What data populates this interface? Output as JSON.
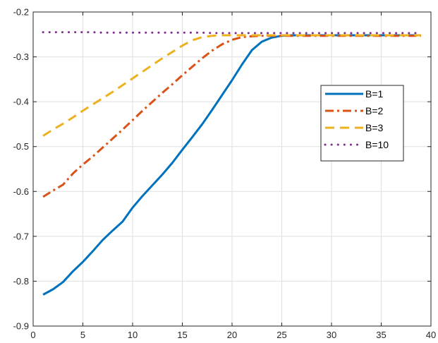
{
  "chart_data": {
    "type": "line",
    "title": "",
    "xlabel": "",
    "ylabel": "",
    "xlim": [
      0,
      40
    ],
    "ylim": [
      -0.9,
      -0.2
    ],
    "xticks": [
      0,
      5,
      10,
      15,
      20,
      25,
      30,
      35,
      40
    ],
    "yticks": [
      -0.9,
      -0.8,
      -0.7,
      -0.6,
      -0.5,
      -0.4,
      -0.3,
      -0.2
    ],
    "xtick_labels": [
      "0",
      "5",
      "10",
      "15",
      "20",
      "25",
      "30",
      "35",
      "40"
    ],
    "ytick_labels": [
      "-0.9",
      "-0.8",
      "-0.7",
      "-0.6",
      "-0.5",
      "-0.4",
      "-0.3",
      "-0.2"
    ],
    "grid": true,
    "legend_position": "right",
    "x": [
      1,
      2,
      3,
      4,
      5,
      6,
      7,
      8,
      9,
      10,
      11,
      12,
      13,
      14,
      15,
      16,
      17,
      18,
      19,
      20,
      21,
      22,
      23,
      24,
      25,
      26,
      27,
      28,
      29,
      30,
      31,
      32,
      33,
      34,
      35,
      36,
      37,
      38,
      39
    ],
    "series": [
      {
        "name": "B=1",
        "color": "#0072BD",
        "style": "solid",
        "values": [
          -0.83,
          -0.818,
          -0.802,
          -0.778,
          -0.757,
          -0.733,
          -0.708,
          -0.687,
          -0.667,
          -0.636,
          -0.61,
          -0.586,
          -0.562,
          -0.536,
          -0.507,
          -0.479,
          -0.45,
          -0.418,
          -0.385,
          -0.352,
          -0.317,
          -0.285,
          -0.266,
          -0.257,
          -0.253,
          -0.252,
          -0.252,
          -0.252,
          -0.252,
          -0.252,
          -0.252,
          -0.252,
          -0.252,
          -0.252,
          -0.252,
          -0.252,
          -0.252,
          -0.252,
          -0.252
        ]
      },
      {
        "name": "B=2",
        "color": "#D95319",
        "style": "dashdot",
        "values": [
          -0.612,
          -0.598,
          -0.585,
          -0.56,
          -0.54,
          -0.522,
          -0.502,
          -0.482,
          -0.462,
          -0.441,
          -0.42,
          -0.4,
          -0.38,
          -0.361,
          -0.341,
          -0.322,
          -0.303,
          -0.286,
          -0.272,
          -0.262,
          -0.256,
          -0.254,
          -0.253,
          -0.253,
          -0.253,
          -0.253,
          -0.253,
          -0.253,
          -0.253,
          -0.253,
          -0.253,
          -0.253,
          -0.253,
          -0.253,
          -0.253,
          -0.253,
          -0.253,
          -0.253,
          -0.253
        ]
      },
      {
        "name": "B=3",
        "color": "#EDB120",
        "style": "dashed",
        "values": [
          -0.476,
          -0.462,
          -0.449,
          -0.435,
          -0.42,
          -0.406,
          -0.392,
          -0.378,
          -0.363,
          -0.348,
          -0.333,
          -0.318,
          -0.303,
          -0.289,
          -0.275,
          -0.263,
          -0.256,
          -0.253,
          -0.252,
          -0.252,
          -0.252,
          -0.252,
          -0.252,
          -0.252,
          -0.252,
          -0.252,
          -0.252,
          -0.252,
          -0.252,
          -0.252,
          -0.252,
          -0.252,
          -0.252,
          -0.252,
          -0.252,
          -0.252,
          -0.252,
          -0.252,
          -0.252
        ]
      },
      {
        "name": "B=10",
        "color": "#7E2F8E",
        "style": "dotted",
        "values": [
          -0.245,
          -0.245,
          -0.245,
          -0.245,
          -0.245,
          -0.245,
          -0.246,
          -0.246,
          -0.246,
          -0.246,
          -0.246,
          -0.246,
          -0.246,
          -0.246,
          -0.246,
          -0.246,
          -0.246,
          -0.247,
          -0.247,
          -0.247,
          -0.247,
          -0.247,
          -0.247,
          -0.247,
          -0.247,
          -0.247,
          -0.247,
          -0.247,
          -0.247,
          -0.247,
          -0.247,
          -0.247,
          -0.247,
          -0.247,
          -0.247,
          -0.247,
          -0.247,
          -0.247,
          -0.247
        ]
      }
    ]
  }
}
